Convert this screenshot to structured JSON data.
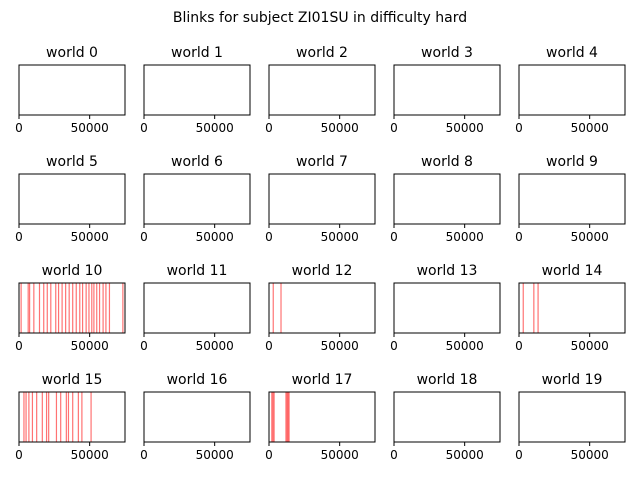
{
  "figure": {
    "title": "Blinks for subject ZI01SU in difficulty hard"
  },
  "colors": {
    "blink": "#ff0000",
    "axes": "#000000",
    "background": "#ffffff"
  },
  "chart_data": {
    "type": "small-multiples-event-lines",
    "grid": false,
    "shared_xlim": [
      0,
      75000
    ],
    "x_ticks": [
      0,
      50000
    ],
    "x_tick_labels": [
      "0",
      "50000"
    ],
    "y_ticks": [],
    "panels": [
      {
        "title": "world 0",
        "events": []
      },
      {
        "title": "world 1",
        "events": []
      },
      {
        "title": "world 2",
        "events": []
      },
      {
        "title": "world 3",
        "events": []
      },
      {
        "title": "world 4",
        "events": []
      },
      {
        "title": "world 5",
        "events": []
      },
      {
        "title": "world 6",
        "events": []
      },
      {
        "title": "world 7",
        "events": []
      },
      {
        "title": "world 8",
        "events": []
      },
      {
        "title": "world 9",
        "events": []
      },
      {
        "title": "world 10",
        "events": [
          1500,
          6500,
          7500,
          10500,
          14500,
          17500,
          20000,
          22500,
          26000,
          28000,
          30500,
          33000,
          35500,
          38000,
          40500,
          43000,
          45000,
          47500,
          49500,
          51500,
          53000,
          55000,
          57000,
          59500,
          61500,
          64000,
          73500
        ]
      },
      {
        "title": "world 11",
        "events": []
      },
      {
        "title": "world 12",
        "events": [
          3000,
          8500
        ]
      },
      {
        "title": "world 13",
        "events": []
      },
      {
        "title": "world 14",
        "events": [
          3000,
          10500,
          13500
        ]
      },
      {
        "title": "world 15",
        "events": [
          3500,
          5000,
          7000,
          9500,
          12500,
          16500,
          19500,
          21000,
          26500,
          29500,
          33500,
          35000,
          38000,
          42000,
          44500,
          51000
        ]
      },
      {
        "title": "world 16",
        "events": []
      },
      {
        "title": "world 17",
        "events": [
          2000,
          2800,
          3600,
          12000,
          12800,
          13500,
          14200
        ]
      },
      {
        "title": "world 18",
        "events": []
      },
      {
        "title": "world 19",
        "events": []
      }
    ]
  }
}
